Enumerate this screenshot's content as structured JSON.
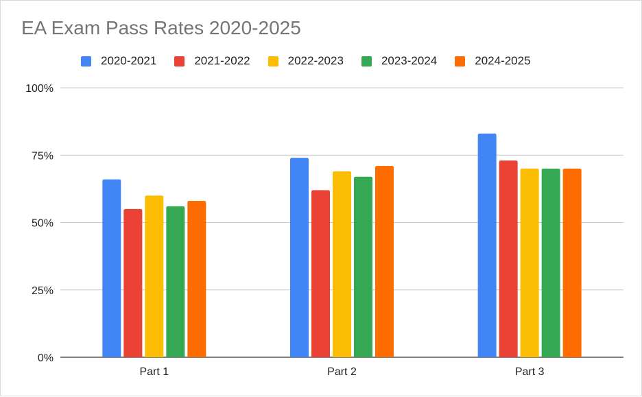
{
  "chart_data": {
    "type": "bar",
    "title": "EA Exam Pass Rates 2020-2025",
    "xlabel": "",
    "ylabel": "",
    "categories": [
      "Part 1",
      "Part 2",
      "Part 3"
    ],
    "series": [
      {
        "name": "2020-2021",
        "color": "#4285F4",
        "values": [
          66,
          74,
          83
        ]
      },
      {
        "name": "2021-2022",
        "color": "#EA4335",
        "values": [
          55,
          62,
          73
        ]
      },
      {
        "name": "2022-2023",
        "color": "#FBBC04",
        "values": [
          60,
          69,
          70
        ]
      },
      {
        "name": "2023-2024",
        "color": "#34A853",
        "values": [
          56,
          67,
          70
        ]
      },
      {
        "name": "2024-2025",
        "color": "#FF6D01",
        "values": [
          58,
          71,
          70
        ]
      }
    ],
    "ylim": [
      0,
      100
    ],
    "yticks": [
      0,
      25,
      50,
      75,
      100
    ],
    "ytick_labels": [
      "0%",
      "25%",
      "50%",
      "75%",
      "100%"
    ],
    "grid": true,
    "legend_position": "top"
  }
}
